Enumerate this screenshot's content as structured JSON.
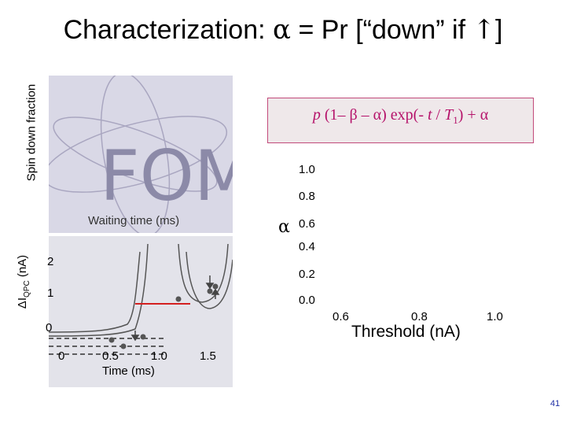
{
  "slide": {
    "title_prefix": "Characterization: ",
    "title_alpha": "α",
    "title_middle": " = Pr [“down” if ",
    "title_arrow": "↑",
    "title_suffix": "]",
    "page_number": "41"
  },
  "fom_panel": {
    "watermark": "FOM",
    "y_label": "Spin down fraction",
    "x_label": "Waiting time (ms)"
  },
  "formula": {
    "p": "p",
    "body": " (1– β – α) exp(- ",
    "t": "t",
    "slash": " / ",
    "T": "T",
    "sub": "1",
    "tail": ") + ",
    "alpha": "α"
  },
  "alpha_chart": {
    "y_symbol": "α",
    "y_ticks": [
      "1.0",
      "0.8",
      "0.6",
      "0.4",
      "0.2",
      "0.0"
    ],
    "x_ticks": [
      "0.6",
      "0.8",
      "1.0"
    ],
    "x_label": "Threshold (nA)"
  },
  "trace_panel": {
    "y_label": "ΔIQPC (nA)",
    "y_label_main": "ΔI",
    "y_label_sub": "QPC",
    "y_label_unit": " (nA)",
    "y_ticks": [
      "2",
      "1",
      "0"
    ],
    "x_ticks": [
      "0",
      "0.5",
      "1.0",
      "1.5"
    ],
    "x_label": "Time (ms)"
  },
  "colors": {
    "formula": "#b5126a",
    "threshold_line": "#d42020",
    "page_number": "#1f2fa5"
  }
}
